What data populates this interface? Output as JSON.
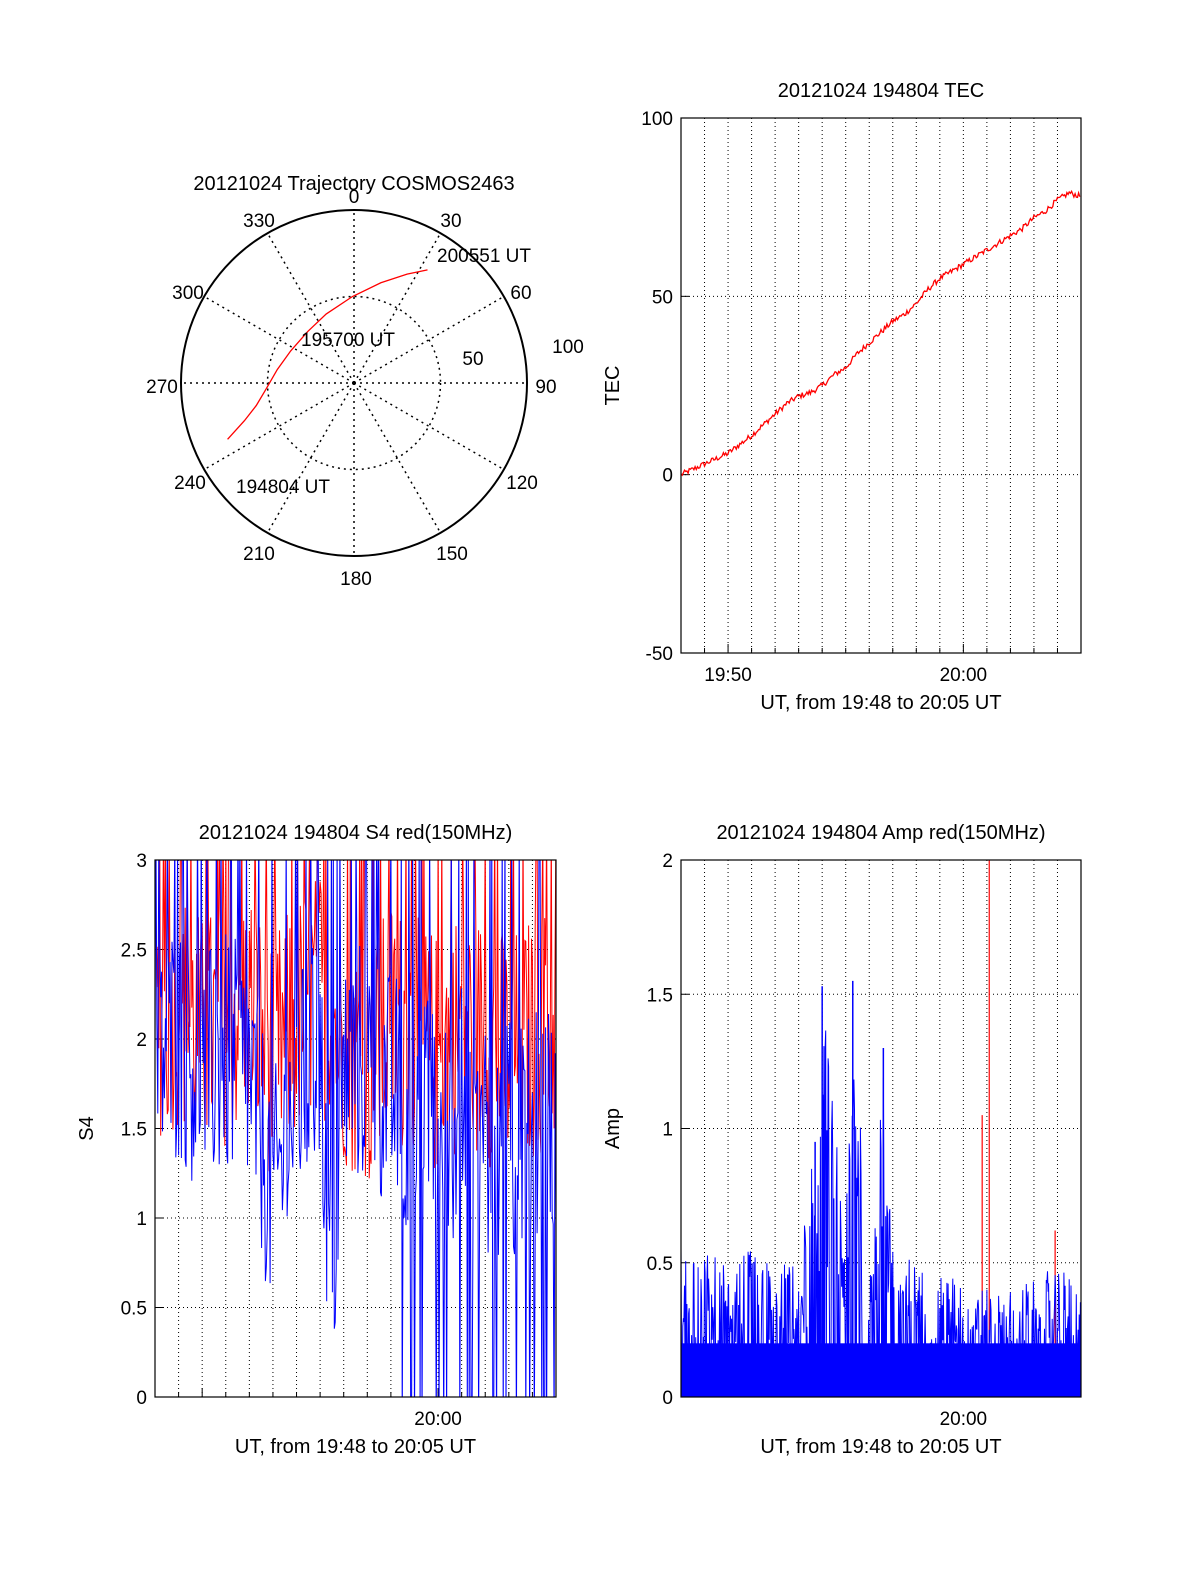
{
  "colors": {
    "red": "#ff0000",
    "blue": "#0000ff",
    "axis": "#000000",
    "grid": "#000000"
  },
  "chart_data": [
    {
      "type": "polar",
      "title": "20121024 Trajectory COSMOS2463",
      "angle_labels": [
        "0",
        "30",
        "60",
        "90",
        "120",
        "150",
        "180",
        "210",
        "240",
        "270",
        "300",
        "330"
      ],
      "radial_labels": [
        "50",
        "100"
      ],
      "series": [
        {
          "color": "red",
          "points": [
            {
              "az": 246,
              "r": 80
            },
            {
              "az": 251,
              "r": 67
            },
            {
              "az": 257,
              "r": 58
            },
            {
              "az": 266,
              "r": 51
            },
            {
              "az": 280,
              "r": 45
            },
            {
              "az": 297,
              "r": 41
            },
            {
              "az": 318,
              "r": 40
            },
            {
              "az": 338,
              "r": 43
            },
            {
              "az": 359,
              "r": 50
            },
            {
              "az": 15,
              "r": 60
            },
            {
              "az": 26,
              "r": 70
            },
            {
              "az": 33,
              "r": 78
            }
          ]
        }
      ],
      "annotations": [
        {
          "text": "200551 UT"
        },
        {
          "text": "195700 UT"
        },
        {
          "text": "194804 UT"
        }
      ]
    },
    {
      "type": "line",
      "title": "20121024 194804 TEC",
      "ylabel": "TEC",
      "xlabel": "UT, from 19:48 to 20:05 UT",
      "xlim": [
        0,
        17
      ],
      "ylim": [
        -50,
        100
      ],
      "yticks": [
        "-50",
        "0",
        "50",
        "100"
      ],
      "xticks": [
        {
          "x": 2,
          "label": "19:50"
        },
        {
          "x": 12,
          "label": "20:00"
        }
      ],
      "grid": true,
      "series": [
        {
          "color": "red",
          "x": [
            0,
            1,
            2,
            3,
            3.5,
            4,
            4.5,
            5,
            5.5,
            6,
            6.5,
            7,
            7.5,
            8,
            8.5,
            9,
            9.5,
            10,
            10.5,
            11,
            11.5,
            12,
            12.5,
            13,
            13.5,
            14,
            14.5,
            15,
            15.5,
            16,
            16.5,
            17
          ],
          "y": [
            0,
            3,
            6,
            11,
            14,
            17,
            20,
            22,
            23,
            25,
            28,
            30,
            34,
            37,
            40,
            43,
            45,
            48,
            52,
            55,
            57,
            59,
            61,
            63,
            65,
            67,
            69,
            72,
            74,
            77,
            79,
            78
          ]
        }
      ]
    },
    {
      "type": "line",
      "title": "20121024 194804 S4 red(150MHz)",
      "ylabel": "S4",
      "xlabel": "UT, from 19:48 to 20:05 UT",
      "xlim": [
        0,
        17
      ],
      "ylim": [
        0,
        3
      ],
      "yticks": [
        "0",
        "0.5",
        "1",
        "1.5",
        "2",
        "2.5",
        "3"
      ],
      "xticks": [
        {
          "x": 12,
          "label": "20:00"
        }
      ],
      "grid": true,
      "series": [
        {
          "color": "red",
          "x": [
            0,
            1,
            2,
            3,
            4,
            5,
            6,
            7,
            8,
            9,
            10,
            11,
            12,
            13,
            14,
            15,
            16,
            17
          ],
          "y": [
            2.1,
            2.2,
            2.0,
            2.1,
            2.2,
            1.9,
            2.1,
            2.3,
            2.0,
            1.8,
            2.1,
            2.0,
            1.9,
            2.1,
            2.0,
            1.9,
            2.0,
            2.1
          ]
        },
        {
          "color": "blue",
          "x": [
            0,
            1,
            2,
            3,
            4,
            5,
            6,
            7,
            7.5,
            8,
            9,
            10,
            11,
            12,
            13,
            14,
            15,
            16,
            17
          ],
          "y": [
            1.9,
            2.0,
            1.8,
            1.9,
            1.8,
            1.1,
            1.7,
            1.9,
            0.6,
            1.8,
            1.9,
            1.7,
            1.6,
            1.5,
            1.6,
            1.5,
            1.4,
            1.5,
            1.6
          ]
        }
      ]
    },
    {
      "type": "line",
      "title": "20121024 194804 Amp red(150MHz)",
      "ylabel": "Amp",
      "xlabel": "UT, from 19:48 to 20:05 UT",
      "xlim": [
        0,
        17
      ],
      "ylim": [
        0,
        2
      ],
      "yticks": [
        "0",
        "0.5",
        "1",
        "1.5",
        "2"
      ],
      "xticks": [
        {
          "x": 12,
          "label": "20:00"
        }
      ],
      "grid": true,
      "series": [
        {
          "color": "red",
          "x": [
            12.8,
            13.1,
            15.9
          ],
          "y": [
            1.05,
            2.0,
            0.62
          ]
        },
        {
          "color": "blue",
          "x": [
            0,
            1,
            2,
            3,
            4,
            5,
            5.7,
            6,
            7,
            7.3,
            8,
            8.6,
            9,
            10,
            11,
            12,
            13,
            14,
            15,
            16,
            17
          ],
          "y": [
            0.6,
            0.55,
            0.5,
            0.55,
            0.5,
            0.5,
            0.95,
            1.53,
            0.6,
            1.55,
            0.7,
            1.3,
            0.6,
            0.5,
            0.45,
            0.45,
            0.4,
            0.4,
            0.45,
            0.5,
            0.4
          ]
        }
      ]
    }
  ]
}
